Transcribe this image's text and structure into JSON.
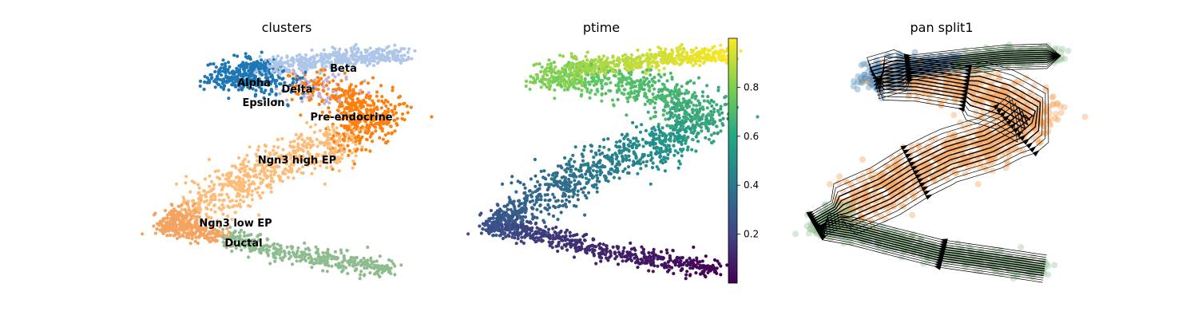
{
  "chart_data": [
    {
      "type": "scatter",
      "title": "clusters",
      "xlabel": "",
      "ylabel": "",
      "legend": "on data",
      "categories": [
        "Alpha",
        "Beta",
        "Delta",
        "Epsilon",
        "Pre-endocrine",
        "Ngn3 high EP",
        "Ngn3 low EP",
        "Ductal"
      ],
      "colors": {
        "Alpha": "#1f77b4",
        "Beta": "#aec7e8",
        "Delta": "#ff7f0e",
        "Epsilon": "#c5b0d5",
        "Pre-endocrine": "#ff7f0e",
        "Ngn3 high EP": "#ffbb78",
        "Ngn3 low EP": "#f4a460",
        "Ductal": "#8fbc8f"
      }
    },
    {
      "type": "scatter",
      "title": "ptime",
      "xlabel": "",
      "ylabel": "",
      "colormap": "viridis",
      "colorbar_ticks": [
        "0.2",
        "0.4",
        "0.6",
        "0.8"
      ],
      "colorbar_range": [
        0.0,
        1.0
      ]
    },
    {
      "type": "scatter",
      "title": "pan split1",
      "xlabel": "",
      "ylabel": "",
      "overlay": "streamlines"
    }
  ]
}
